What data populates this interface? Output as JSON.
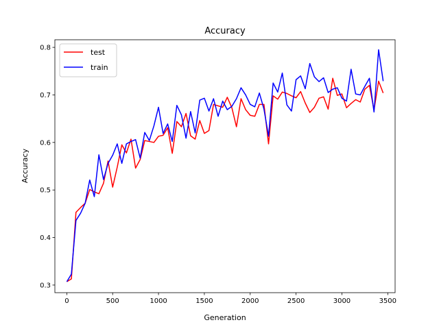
{
  "chart_data": {
    "type": "line",
    "title": "Accuracy",
    "xlabel": "Generation",
    "ylabel": "Accuracy",
    "xlim": [
      -130,
      3580
    ],
    "ylim": [
      0.284,
      0.816
    ],
    "xticks": [
      0,
      500,
      1000,
      1500,
      2000,
      2500,
      3000,
      3500
    ],
    "yticks": [
      0.3,
      0.4,
      0.5,
      0.6,
      0.7,
      0.8
    ],
    "ytick_labels": [
      "0.3",
      "0.4",
      "0.5",
      "0.6",
      "0.7",
      "0.8"
    ],
    "grid": false,
    "legend_position": "upper-left",
    "x": [
      0,
      50,
      100,
      150,
      200,
      250,
      300,
      350,
      400,
      450,
      500,
      550,
      600,
      650,
      700,
      750,
      800,
      850,
      900,
      950,
      1000,
      1050,
      1100,
      1150,
      1200,
      1250,
      1300,
      1350,
      1400,
      1450,
      1500,
      1550,
      1600,
      1650,
      1700,
      1750,
      1800,
      1850,
      1900,
      1950,
      2000,
      2050,
      2100,
      2150,
      2200,
      2250,
      2300,
      2350,
      2400,
      2450,
      2500,
      2550,
      2600,
      2650,
      2700,
      2750,
      2800,
      2850,
      2900,
      2950,
      3000,
      3050,
      3100,
      3150,
      3200,
      3250,
      3300,
      3350,
      3400,
      3450
    ],
    "series": [
      {
        "name": "test",
        "color": "#ff0000",
        "values": [
          0.307,
          0.313,
          0.453,
          0.463,
          0.472,
          0.501,
          0.496,
          0.492,
          0.514,
          0.561,
          0.506,
          0.548,
          0.595,
          0.578,
          0.607,
          0.546,
          0.564,
          0.604,
          0.602,
          0.6,
          0.613,
          0.615,
          0.631,
          0.577,
          0.644,
          0.633,
          0.661,
          0.614,
          0.607,
          0.646,
          0.619,
          0.625,
          0.68,
          0.677,
          0.674,
          0.695,
          0.673,
          0.633,
          0.692,
          0.669,
          0.657,
          0.655,
          0.68,
          0.68,
          0.597,
          0.698,
          0.691,
          0.706,
          0.703,
          0.698,
          0.694,
          0.707,
          0.683,
          0.663,
          0.674,
          0.693,
          0.696,
          0.67,
          0.735,
          0.699,
          0.702,
          0.673,
          0.682,
          0.69,
          0.685,
          0.712,
          0.72,
          0.668,
          0.729,
          0.704
        ]
      },
      {
        "name": "train",
        "color": "#0000ff",
        "values": [
          0.307,
          0.323,
          0.436,
          0.451,
          0.472,
          0.521,
          0.486,
          0.574,
          0.522,
          0.556,
          0.573,
          0.597,
          0.556,
          0.597,
          0.602,
          0.606,
          0.567,
          0.621,
          0.604,
          0.635,
          0.674,
          0.619,
          0.639,
          0.602,
          0.678,
          0.658,
          0.609,
          0.665,
          0.62,
          0.689,
          0.693,
          0.666,
          0.692,
          0.655,
          0.687,
          0.669,
          0.676,
          0.692,
          0.715,
          0.7,
          0.68,
          0.675,
          0.704,
          0.67,
          0.613,
          0.725,
          0.706,
          0.746,
          0.679,
          0.666,
          0.732,
          0.74,
          0.713,
          0.766,
          0.738,
          0.728,
          0.736,
          0.705,
          0.712,
          0.715,
          0.693,
          0.687,
          0.754,
          0.702,
          0.7,
          0.718,
          0.735,
          0.664,
          0.795,
          0.729
        ]
      }
    ]
  }
}
